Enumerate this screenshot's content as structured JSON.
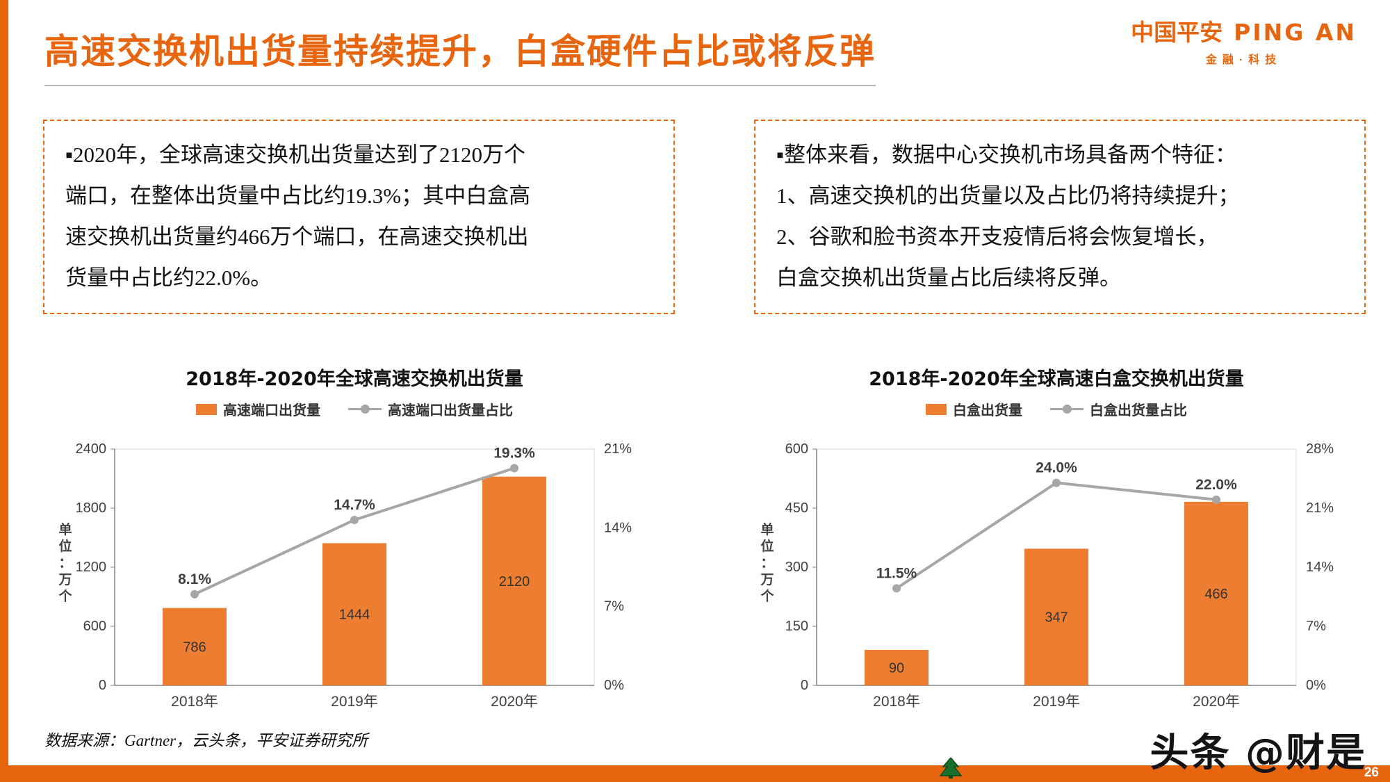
{
  "colors": {
    "accent": "#e8650f",
    "bar": "#ed7d31",
    "line": "#a6a6a6",
    "axis": "#808080",
    "plot_border": "#d9d9d9",
    "tree_green": "#176f2c"
  },
  "header": {
    "title": "高速交换机出货量持续提升，白盒硬件占比或将反弹",
    "logo_cn": "中国平安",
    "logo_en": "PING AN",
    "logo_sub": "金融·科技"
  },
  "callouts": {
    "left_lines": [
      "▪2020年，全球高速交换机出货量达到了2120万个",
      "端口，在整体出货量中占比约19.3%；其中白盒高",
      "速交换机出货量约466万个端口，在高速交换机出",
      "货量中占比约22.0%。"
    ],
    "right_lines": [
      "▪整体来看，数据中心交换机市场具备两个特征：",
      "1、高速交换机的出货量以及占比仍将持续提升；",
      "2、谷歌和脸书资本开支疫情后将会恢复增长，",
      "白盒交换机出货量占比后续将反弹。"
    ]
  },
  "chart_data": [
    {
      "type": "bar+line",
      "title": "2018年-2020年全球高速交换机出货量",
      "categories": [
        "2018年",
        "2019年",
        "2020年"
      ],
      "bar_series": {
        "name": "高速端口出货量",
        "values": [
          786,
          1444,
          2120
        ]
      },
      "line_series": {
        "name": "高速端口出货量占比",
        "values": [
          8.1,
          14.7,
          19.3
        ],
        "labels": [
          "8.1%",
          "14.7%",
          "19.3%"
        ]
      },
      "left_axis": {
        "min": 0,
        "max": 2400,
        "step": 600,
        "title": "单位：万个"
      },
      "right_axis": {
        "min": 0,
        "max": 21,
        "step": 7,
        "suffix": "%"
      },
      "grid": false,
      "legend_position": "top"
    },
    {
      "type": "bar+line",
      "title": "2018年-2020年全球高速白盒交换机出货量",
      "categories": [
        "2018年",
        "2019年",
        "2020年"
      ],
      "bar_series": {
        "name": "白盒出货量",
        "values": [
          90,
          347,
          466
        ]
      },
      "line_series": {
        "name": "白盒出货量占比",
        "values": [
          11.5,
          24.0,
          22.0
        ],
        "labels": [
          "11.5%",
          "24.0%",
          "22.0%"
        ]
      },
      "left_axis": {
        "min": 0,
        "max": 600,
        "step": 150,
        "title": "单位：万个"
      },
      "right_axis": {
        "min": 0,
        "max": 28,
        "step": 7,
        "suffix": "%"
      },
      "grid": false,
      "legend_position": "top"
    }
  ],
  "footer": {
    "source": "数据来源：Gartner，云头条，平安证券研究所",
    "watermark": "头条 @财是",
    "page_number": "26"
  }
}
